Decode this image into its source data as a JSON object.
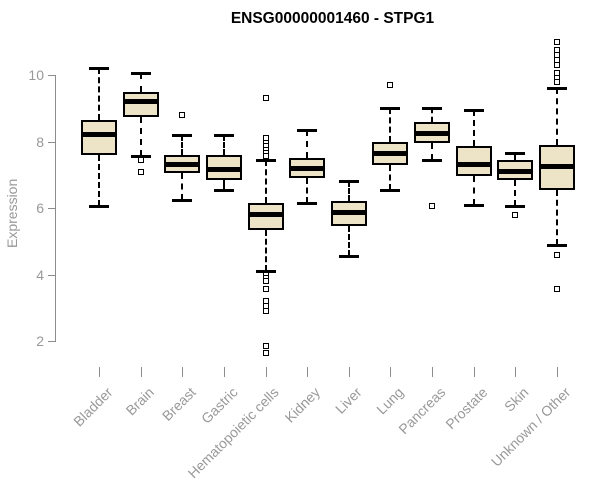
{
  "chart_data": {
    "type": "boxplot",
    "title": "ENSG00000001460 - STPG1",
    "ylabel": "Expression",
    "xlabel": "",
    "yticks": [
      2,
      4,
      6,
      8,
      10
    ],
    "ylim": [
      1.5,
      11.1
    ],
    "grid": false,
    "legend": "none",
    "colors": {
      "box_fill": "#EDE3C6",
      "box_stroke": "#000000",
      "axis": "#8c8c8c",
      "tick_label": "#999999",
      "title": "#000000"
    },
    "categories": [
      {
        "label": "Bladder",
        "low": 6.05,
        "q1": 7.6,
        "median": 8.2,
        "q3": 8.65,
        "high": 10.2,
        "outliers": []
      },
      {
        "label": "Brain",
        "low": 7.55,
        "q1": 8.75,
        "median": 9.2,
        "q3": 9.5,
        "high": 10.05,
        "outliers": [
          7.43,
          7.08
        ]
      },
      {
        "label": "Breast",
        "low": 6.25,
        "q1": 7.05,
        "median": 7.3,
        "q3": 7.6,
        "high": 8.2,
        "outliers": [
          8.8
        ]
      },
      {
        "label": "Gastric",
        "low": 6.55,
        "q1": 6.85,
        "median": 7.15,
        "q3": 7.6,
        "high": 8.2,
        "outliers": []
      },
      {
        "label": "Hematopoietic cells",
        "low": 4.1,
        "q1": 5.35,
        "median": 5.8,
        "q3": 6.15,
        "high": 7.45,
        "outliers": [
          9.3,
          8.1,
          7.95,
          7.85,
          7.75,
          7.65,
          7.55,
          4.0,
          3.9,
          3.8,
          3.55,
          3.2,
          3.05,
          2.9,
          1.85,
          1.65
        ]
      },
      {
        "label": "Kidney",
        "low": 6.15,
        "q1": 6.9,
        "median": 7.2,
        "q3": 7.5,
        "high": 8.35,
        "outliers": []
      },
      {
        "label": "Liver",
        "low": 4.55,
        "q1": 5.45,
        "median": 5.85,
        "q3": 6.2,
        "high": 6.8,
        "outliers": []
      },
      {
        "label": "Lung",
        "low": 6.55,
        "q1": 7.3,
        "median": 7.65,
        "q3": 8.0,
        "high": 9.0,
        "outliers": [
          9.7
        ]
      },
      {
        "label": "Pancreas",
        "low": 7.45,
        "q1": 7.95,
        "median": 8.25,
        "q3": 8.6,
        "high": 9.0,
        "outliers": [
          6.05
        ]
      },
      {
        "label": "Prostate",
        "low": 6.1,
        "q1": 6.95,
        "median": 7.3,
        "q3": 7.85,
        "high": 8.95,
        "outliers": []
      },
      {
        "label": "Skin",
        "low": 6.05,
        "q1": 6.85,
        "median": 7.1,
        "q3": 7.45,
        "high": 7.65,
        "outliers": [
          5.8
        ]
      },
      {
        "label": "Unknown / Other",
        "low": 4.9,
        "q1": 6.55,
        "median": 7.25,
        "q3": 7.9,
        "high": 9.6,
        "outliers": [
          11.0,
          10.75,
          10.6,
          10.45,
          10.3,
          10.05,
          9.9,
          9.8,
          4.6,
          3.55
        ]
      }
    ]
  }
}
